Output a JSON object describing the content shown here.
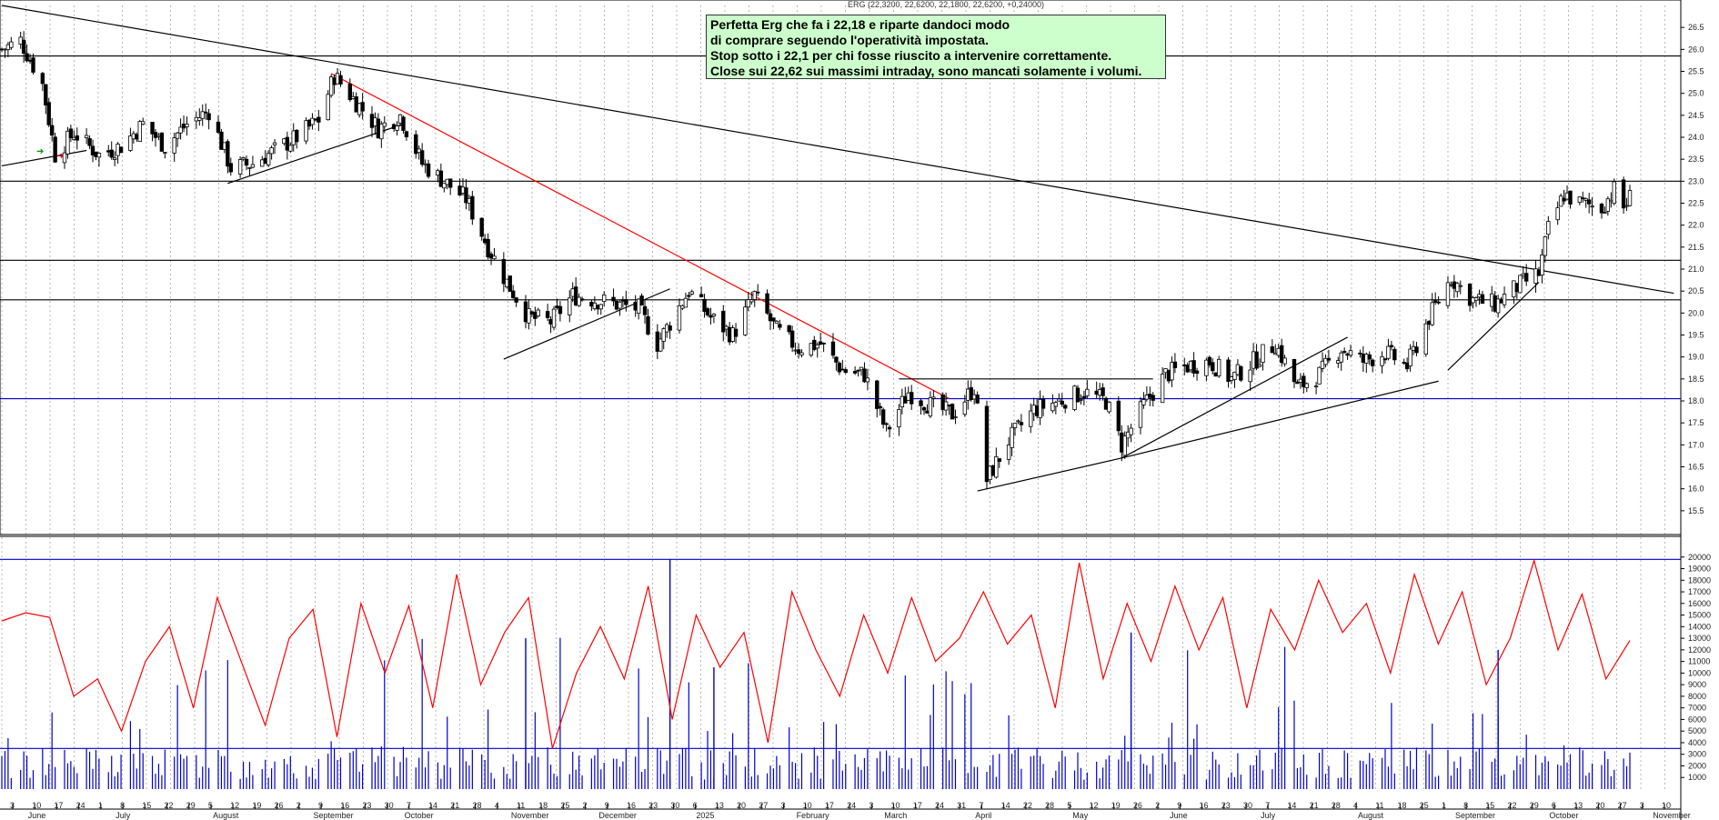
{
  "header": {
    "ticker_line": "ERG (22,3200, 22,6200, 22,1800, 22,6200, +0,24000)"
  },
  "annotation": {
    "lines": [
      "Perfetta Erg che fa i 22,18 e riparte dandoci modo",
      "di comprare seguendo l'operatività impostata.",
      "Stop sotto i 22,1 per chi fosse riuscito a intervenire correttamente.",
      "Close sui 22,62 sui massimi intraday, sono mancati solamente i volumi."
    ]
  },
  "colors": {
    "candles": "#000000",
    "support_lines": "#000000",
    "blue_line": "#0000cc",
    "red_trendline": "#ff0000",
    "volume_bars": "#0000cc",
    "oscillator": "#ff0000",
    "grid": "#b8b8b8",
    "note_background": "#ccffcc"
  },
  "chart_data": [
    {
      "type": "candlestick",
      "title": "",
      "ylim": [
        15.0,
        27.0
      ],
      "y_ticks": [
        "15.5",
        "16.0",
        "16.5",
        "17.0",
        "17.5",
        "18.0",
        "18.5",
        "19.0",
        "19.5",
        "20.0",
        "20.5",
        "21.0",
        "21.5",
        "22.0",
        "22.5",
        "23.0",
        "23.5",
        "24.0",
        "24.5",
        "25.0",
        "25.5",
        "26.0",
        "26.5"
      ],
      "grid": true,
      "horizontal_levels": [
        {
          "y": 25.85,
          "color": "black"
        },
        {
          "y": 23.0,
          "color": "black"
        },
        {
          "y": 21.2,
          "color": "black"
        },
        {
          "y": 20.3,
          "color": "black"
        },
        {
          "y": 18.05,
          "color": "blue"
        }
      ],
      "trendlines": [
        {
          "from": [
            "2024-05-28",
            27.0
          ],
          "to": [
            "2025-11-12",
            20.45
          ],
          "color": "black"
        },
        {
          "from": [
            "2024-09-10",
            25.45
          ],
          "to": [
            "2025-03-26",
            18.05
          ],
          "color": "red"
        },
        {
          "from": [
            "2024-05-28",
            23.35
          ],
          "to": [
            "2024-06-24",
            23.7
          ],
          "color": "black"
        },
        {
          "from": [
            "2024-08-08",
            22.95
          ],
          "to": [
            "2024-10-03",
            24.3
          ],
          "color": "black"
        },
        {
          "from": [
            "2024-11-04",
            18.95
          ],
          "to": [
            "2024-12-27",
            20.55
          ],
          "color": "black"
        },
        {
          "from": [
            "2025-04-04",
            15.95
          ],
          "to": [
            "2025-05-20",
            16.7
          ],
          "color": "black"
        },
        {
          "from": [
            "2025-05-20",
            16.7
          ],
          "to": [
            "2025-07-31",
            19.45
          ],
          "color": "black"
        },
        {
          "from": [
            "2025-05-20",
            16.7
          ],
          "to": [
            "2025-08-29",
            18.45
          ],
          "color": "black"
        },
        {
          "from": [
            "2025-09-01",
            18.7
          ],
          "to": [
            "2025-09-30",
            20.7
          ],
          "color": "black"
        },
        {
          "from": [
            "2025-03-10",
            18.5
          ],
          "to": [
            "2025-05-30",
            18.5
          ],
          "color": "black"
        }
      ],
      "close_path": [
        [
          "2024-05-28",
          26.0
        ],
        [
          "2024-06-03",
          26.2
        ],
        [
          "2024-06-10",
          25.2
        ],
        [
          "2024-06-14",
          23.6
        ],
        [
          "2024-06-20",
          24.1
        ],
        [
          "2024-06-28",
          23.6
        ],
        [
          "2024-07-05",
          23.8
        ],
        [
          "2024-07-12",
          24.3
        ],
        [
          "2024-07-19",
          23.8
        ],
        [
          "2024-07-26",
          24.3
        ],
        [
          "2024-08-02",
          24.6
        ],
        [
          "2024-08-09",
          23.3
        ],
        [
          "2024-08-16",
          23.4
        ],
        [
          "2024-08-23",
          23.7
        ],
        [
          "2024-08-30",
          24.0
        ],
        [
          "2024-09-06",
          24.4
        ],
        [
          "2024-09-11",
          25.4
        ],
        [
          "2024-09-18",
          24.8
        ],
        [
          "2024-09-25",
          24.2
        ],
        [
          "2024-10-02",
          24.5
        ],
        [
          "2024-10-09",
          23.4
        ],
        [
          "2024-10-16",
          23.0
        ],
        [
          "2024-10-23",
          22.6
        ],
        [
          "2024-10-30",
          21.5
        ],
        [
          "2024-11-05",
          20.7
        ],
        [
          "2024-11-12",
          19.9
        ],
        [
          "2024-11-19",
          19.8
        ],
        [
          "2024-11-26",
          20.4
        ],
        [
          "2024-12-03",
          20.3
        ],
        [
          "2024-12-10",
          20.2
        ],
        [
          "2024-12-17",
          20.1
        ],
        [
          "2024-12-23",
          19.3
        ],
        [
          "2025-01-02",
          20.5
        ],
        [
          "2025-01-09",
          19.9
        ],
        [
          "2025-01-16",
          19.5
        ],
        [
          "2025-01-23",
          20.4
        ],
        [
          "2025-01-30",
          19.6
        ],
        [
          "2025-02-06",
          19.2
        ],
        [
          "2025-02-13",
          19.3
        ],
        [
          "2025-02-20",
          18.7
        ],
        [
          "2025-02-27",
          18.6
        ],
        [
          "2025-03-06",
          17.3
        ],
        [
          "2025-03-13",
          18.2
        ],
        [
          "2025-03-20",
          17.9
        ],
        [
          "2025-03-27",
          17.7
        ],
        [
          "2025-04-03",
          18.3
        ],
        [
          "2025-04-07",
          16.2
        ],
        [
          "2025-04-14",
          17.1
        ],
        [
          "2025-04-22",
          17.8
        ],
        [
          "2025-04-30",
          18.0
        ],
        [
          "2025-05-08",
          18.2
        ],
        [
          "2025-05-15",
          18.0
        ],
        [
          "2025-05-20",
          17.0
        ],
        [
          "2025-05-27",
          17.9
        ],
        [
          "2025-06-03",
          18.6
        ],
        [
          "2025-06-10",
          18.8
        ],
        [
          "2025-06-17",
          18.9
        ],
        [
          "2025-06-24",
          18.5
        ],
        [
          "2025-07-01",
          18.9
        ],
        [
          "2025-07-08",
          19.3
        ],
        [
          "2025-07-15",
          18.3
        ],
        [
          "2025-07-22",
          18.6
        ],
        [
          "2025-07-29",
          19.2
        ],
        [
          "2025-08-05",
          18.9
        ],
        [
          "2025-08-12",
          19.1
        ],
        [
          "2025-08-19",
          18.8
        ],
        [
          "2025-08-26",
          19.9
        ],
        [
          "2025-09-02",
          20.8
        ],
        [
          "2025-09-09",
          20.3
        ],
        [
          "2025-09-16",
          20.2
        ],
        [
          "2025-09-23",
          20.6
        ],
        [
          "2025-09-30",
          20.9
        ],
        [
          "2025-10-03",
          21.9
        ],
        [
          "2025-10-08",
          22.7
        ],
        [
          "2025-10-13",
          22.5
        ],
        [
          "2025-10-20",
          22.4
        ],
        [
          "2025-10-24",
          22.8
        ],
        [
          "2025-10-27",
          22.4
        ],
        [
          "2025-10-29",
          22.62
        ]
      ]
    },
    {
      "type": "bar+line",
      "title": "",
      "ylim": [
        0,
        21000
      ],
      "y_ticks": [
        "1000",
        "2000",
        "3000",
        "4000",
        "5000",
        "6000",
        "7000",
        "8000",
        "9000",
        "10000",
        "11000",
        "12000",
        "13000",
        "14000",
        "15000",
        "16000",
        "17000",
        "18000",
        "19000",
        "20000"
      ],
      "horizontal_levels": [
        {
          "y": 19800,
          "color": "blue"
        },
        {
          "y": 3500,
          "color": "blue"
        }
      ],
      "series": [
        {
          "type": "bar",
          "color": "blue",
          "description_values": "daily volume, typical 1000-5000 with spikes up to 20000"
        },
        {
          "type": "line",
          "color": "red",
          "values": [
            14500,
            15200,
            14800,
            8000,
            9500,
            5000,
            11000,
            14000,
            7000,
            16500,
            11000,
            5500,
            13000,
            15500,
            4500,
            16000,
            10000,
            15800,
            7000,
            18500,
            9000,
            13500,
            16500,
            3500,
            10000,
            14000,
            9500,
            17500,
            6000,
            15000,
            10500,
            13500,
            4000,
            17000,
            12000,
            8000,
            15000,
            10000,
            16500,
            11000,
            13000,
            17000,
            12500,
            15000,
            7000,
            19500,
            9500,
            16000,
            11000,
            17500,
            12000,
            16500,
            7000,
            15500,
            12000,
            18000,
            13500,
            16000,
            10000,
            18500,
            12500,
            17000,
            9000,
            13000,
            19700,
            12000,
            16800,
            9500,
            12800
          ]
        }
      ]
    }
  ],
  "axes": {
    "x_day_ticks": [
      "3",
      "10",
      "17",
      "24",
      "1",
      "8",
      "15",
      "22",
      "29",
      "5",
      "12",
      "19",
      "26",
      "2",
      "9",
      "16",
      "23",
      "30",
      "7",
      "14",
      "21",
      "28",
      "4",
      "11",
      "18",
      "25",
      "2",
      "9",
      "16",
      "23",
      "30",
      "6",
      "13",
      "20",
      "27",
      "3",
      "10",
      "17",
      "24",
      "3",
      "10",
      "17",
      "24",
      "31",
      "7",
      "14",
      "22",
      "28",
      "5",
      "12",
      "19",
      "26",
      "2",
      "9",
      "16",
      "23",
      "30",
      "7",
      "14",
      "21",
      "28",
      "4",
      "11",
      "18",
      "25",
      "1",
      "8",
      "15",
      "22",
      "29",
      "6",
      "13",
      "20",
      "27",
      "3",
      "10"
    ],
    "x_month_labels": [
      "June",
      "July",
      "August",
      "September",
      "October",
      "November",
      "December",
      "2025",
      "February",
      "March",
      "April",
      "May",
      "June",
      "July",
      "August",
      "September",
      "October",
      "November"
    ]
  }
}
